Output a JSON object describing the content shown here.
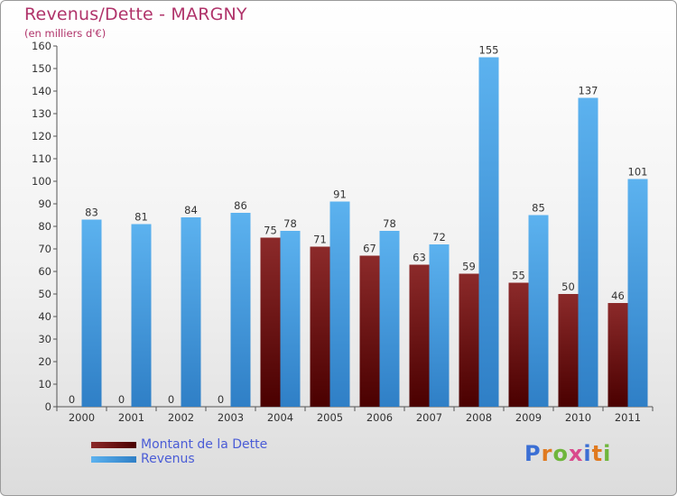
{
  "title": "Revenus/Dette - MARGNY",
  "unit_note": "(en milliers d'€)",
  "logo": "Proxiti",
  "colors": {
    "dette": "#6e0d0d",
    "revenus": "#4aa3e6",
    "title": "#b0336a",
    "legend_text": "#4a5cd6"
  },
  "chart_data": {
    "type": "bar",
    "categories": [
      "2000",
      "2001",
      "2002",
      "2003",
      "2004",
      "2005",
      "2006",
      "2007",
      "2008",
      "2009",
      "2010",
      "2011"
    ],
    "series": [
      {
        "name": "Montant de la Dette",
        "values": [
          0,
          0,
          0,
          0,
          75,
          71,
          67,
          63,
          59,
          55,
          50,
          46
        ]
      },
      {
        "name": "Revenus",
        "values": [
          83,
          81,
          84,
          86,
          78,
          91,
          78,
          72,
          155,
          85,
          137,
          101
        ]
      }
    ],
    "ylim": [
      0,
      160
    ],
    "ytick_step": 10,
    "grid": false,
    "legend": "bottom-left"
  }
}
